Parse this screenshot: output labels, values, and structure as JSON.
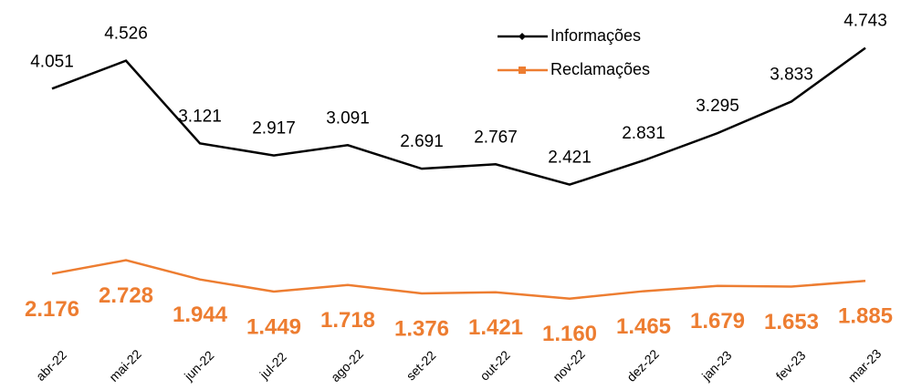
{
  "chart_data": {
    "type": "line",
    "categories": [
      "abr-22",
      "mai-22",
      "jun-22",
      "jul-22",
      "ago-22",
      "set-22",
      "out-22",
      "nov-22",
      "dez-22",
      "jan-23",
      "fev-23",
      "mar-23"
    ],
    "series": [
      {
        "name": "Informações",
        "color": "#000000",
        "marker": "diamond",
        "values": [
          4051,
          4526,
          3121,
          2917,
          3091,
          2691,
          2767,
          2421,
          2831,
          3295,
          3833,
          4743
        ],
        "value_labels": [
          "4.051",
          "4.526",
          "3.121",
          "2.917",
          "3.091",
          "2.691",
          "2.767",
          "2.421",
          "2.831",
          "3.295",
          "3.833",
          "4.743"
        ]
      },
      {
        "name": "Reclamações",
        "color": "#ed7d31",
        "marker": "square",
        "axis": "y2",
        "values": [
          2176,
          2728,
          1944,
          1449,
          1718,
          1376,
          1421,
          1160,
          1465,
          1679,
          1653,
          1885
        ],
        "value_labels": [
          "2.176",
          "2.728",
          "1.944",
          "1.449",
          "1.718",
          "1.376",
          "1.421",
          "1.160",
          "1.465",
          "1.679",
          "1.653",
          "1.885"
        ]
      }
    ],
    "ylim": [
      0,
      5000
    ],
    "y2lim": [
      0,
      12000
    ],
    "legend": "top-right"
  }
}
